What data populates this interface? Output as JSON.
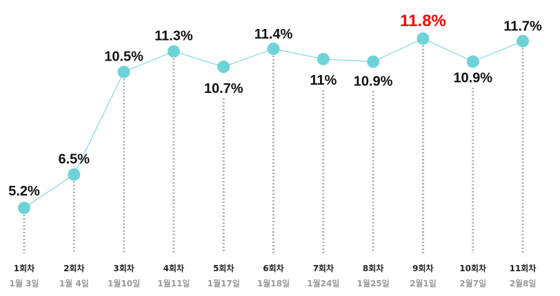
{
  "chart_data": {
    "type": "line",
    "categories": [
      "1회차",
      "2회차",
      "3회차",
      "4회차",
      "5회차",
      "6회차",
      "7회차",
      "8회차",
      "9회차",
      "10회차",
      "11회차"
    ],
    "dates": [
      "1월 3일",
      "1월 4일",
      "1월10일",
      "1월11일",
      "1월17일",
      "1월18일",
      "1월24일",
      "1월25일",
      "2월1일",
      "2월7일",
      "2월8일"
    ],
    "values": [
      5.2,
      6.5,
      10.5,
      11.3,
      10.7,
      11.4,
      11.0,
      10.9,
      11.8,
      10.9,
      11.7
    ],
    "value_labels": [
      "5.2%",
      "6.5%",
      "10.5%",
      "11.3%",
      "10.7%",
      "11.4%",
      "11%",
      "10.9%",
      "11.8%",
      "10.9%",
      "11.7%"
    ],
    "highlight_index": 8,
    "colors": {
      "line": "#7dd8dc",
      "marker": "#6ed3d8",
      "dots": "#aaaaaa",
      "highlight": "#ff0000"
    }
  }
}
